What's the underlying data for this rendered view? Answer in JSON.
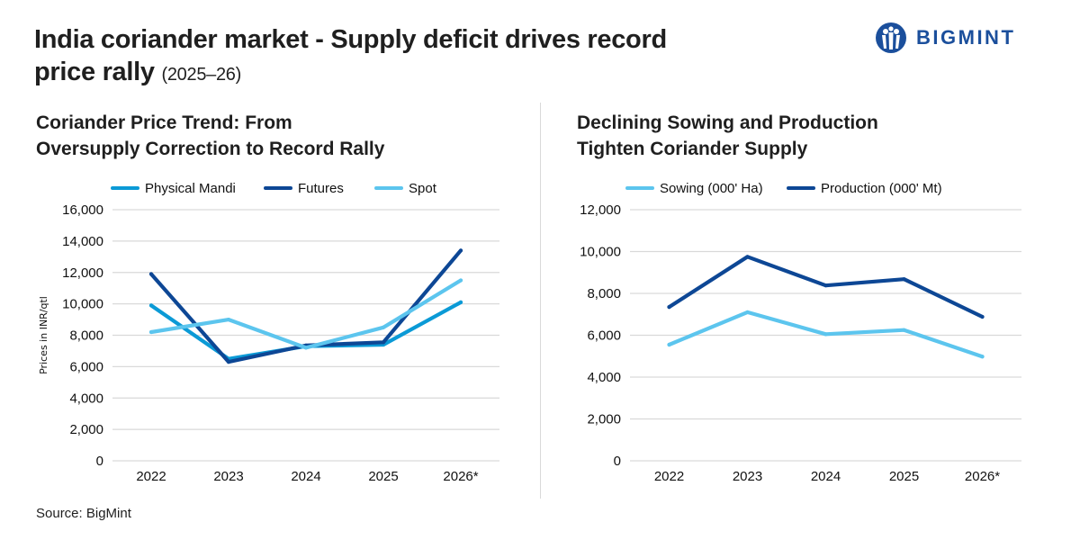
{
  "header": {
    "title_main": "India coriander market - Supply deficit drives record price rally",
    "title_year": "(2025–26)",
    "logo_text": "BIGMINT"
  },
  "footer": {
    "source": "Source: BigMint"
  },
  "colors": {
    "mandi": "#0b9ad6",
    "futures": "#0d4795",
    "spot": "#5cc5ee",
    "sowing": "#5cc5ee",
    "production": "#0d4795",
    "grid": "#d9d9d9",
    "brand": "#1b4f9c"
  },
  "chart_data": [
    {
      "id": "price",
      "type": "line",
      "title": "Coriander Price Trend: From Oversupply Correction to Record Rally",
      "title_lines": [
        "Coriander Price Trend: From",
        "Oversupply Correction to Record Rally"
      ],
      "ylabel": "Prices in INR/qtl",
      "xlabel": "",
      "categories": [
        "2022",
        "2023",
        "2024",
        "2025",
        "2026*"
      ],
      "ylim": [
        0,
        16000
      ],
      "yticks": [
        "0",
        "2,000",
        "4,000",
        "6,000",
        "8,000",
        "10,000",
        "12,000",
        "14,000",
        "16,000"
      ],
      "ytick_values": [
        0,
        2000,
        4000,
        6000,
        8000,
        10000,
        12000,
        14000,
        16000
      ],
      "grid": true,
      "legend_position": "top",
      "series": [
        {
          "name": "Physical Mandi",
          "color_key": "mandi",
          "values": [
            9900,
            6500,
            7300,
            7400,
            10100
          ]
        },
        {
          "name": "Futures",
          "color_key": "futures",
          "values": [
            11900,
            6300,
            7350,
            7550,
            13400
          ]
        },
        {
          "name": "Spot",
          "color_key": "spot",
          "values": [
            8200,
            9000,
            7200,
            8500,
            11500
          ]
        }
      ]
    },
    {
      "id": "supply",
      "type": "line",
      "title": "Declining Sowing and Production Tighten Coriander Supply",
      "title_lines": [
        "Declining Sowing and Production",
        "Tighten Coriander Supply"
      ],
      "ylabel": "",
      "xlabel": "",
      "categories": [
        "2022",
        "2023",
        "2024",
        "2025",
        "2026*"
      ],
      "ylim": [
        0,
        12000
      ],
      "yticks": [
        "0",
        "2,000",
        "4,000",
        "6,000",
        "8,000",
        "10,000",
        "12,000"
      ],
      "ytick_values": [
        0,
        2000,
        4000,
        6000,
        8000,
        10000,
        12000
      ],
      "grid": true,
      "legend_position": "top",
      "series": [
        {
          "name": "Sowing (000' Ha)",
          "color_key": "sowing",
          "values": [
            5550,
            7100,
            6050,
            6250,
            4980
          ]
        },
        {
          "name": "Production (000' Mt)",
          "color_key": "production",
          "values": [
            7350,
            9750,
            8380,
            8680,
            6880
          ]
        }
      ]
    }
  ]
}
